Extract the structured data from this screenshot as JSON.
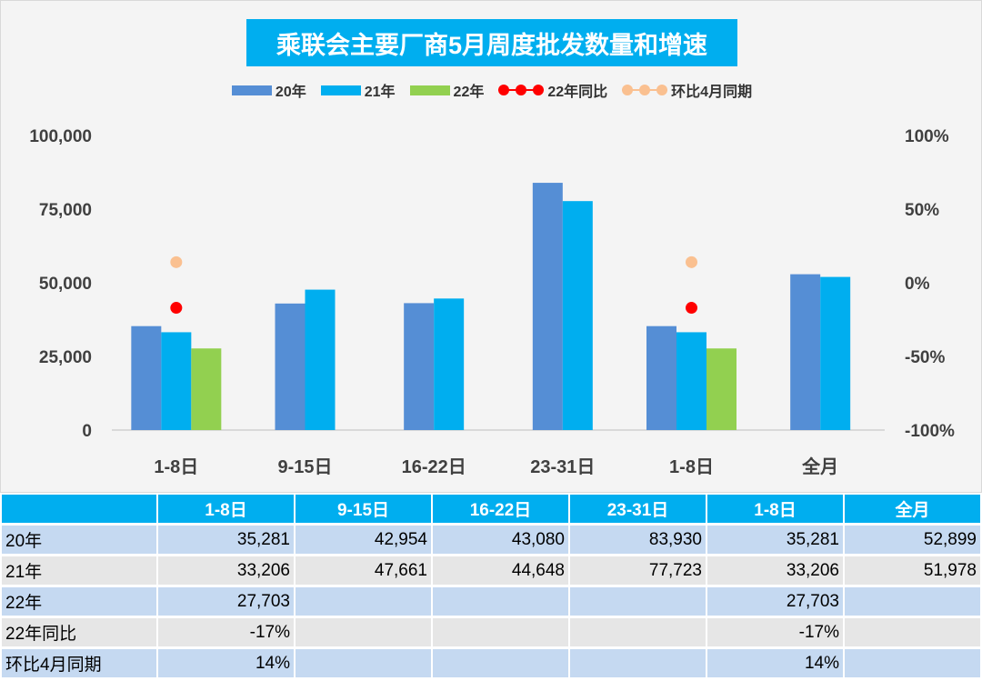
{
  "title": "乘联会主要厂商5月周度批发数量和增速",
  "legend": [
    {
      "name": "20年",
      "color": "#558ed5",
      "kind": "bar"
    },
    {
      "name": "21年",
      "color": "#00aeef",
      "kind": "bar"
    },
    {
      "name": "22年",
      "color": "#92d050",
      "kind": "bar"
    },
    {
      "name": "22年同比",
      "color": "#ff0000",
      "kind": "dot"
    },
    {
      "name": "环比4月同期",
      "color": "#fac090",
      "kind": "dot"
    }
  ],
  "chart_data": {
    "type": "bar",
    "title": "乘联会主要厂商5月周度批发数量和增速",
    "categories": [
      "1-8日",
      "9-15日",
      "16-22日",
      "23-31日",
      "1-8日",
      "全月"
    ],
    "series": [
      {
        "name": "20年",
        "type": "bar",
        "axis": "left",
        "color": "#558ed5",
        "values": [
          35281,
          42954,
          43080,
          83930,
          35281,
          52899
        ]
      },
      {
        "name": "21年",
        "type": "bar",
        "axis": "left",
        "color": "#00aeef",
        "values": [
          33206,
          47661,
          44648,
          77723,
          33206,
          51978
        ]
      },
      {
        "name": "22年",
        "type": "bar",
        "axis": "left",
        "color": "#92d050",
        "values": [
          27703,
          null,
          null,
          null,
          27703,
          null
        ]
      },
      {
        "name": "22年同比",
        "type": "scatter",
        "axis": "right",
        "color": "#ff0000",
        "values": [
          -17,
          null,
          null,
          null,
          -17,
          null
        ]
      },
      {
        "name": "环比4月同期",
        "type": "scatter",
        "axis": "right",
        "color": "#fac090",
        "values": [
          14,
          null,
          null,
          null,
          14,
          null
        ]
      }
    ],
    "y_left": {
      "range": [
        0,
        100000
      ],
      "ticks": [
        0,
        25000,
        50000,
        75000,
        100000
      ],
      "tick_labels": [
        "0",
        "25,000",
        "50,000",
        "75,000",
        "100,000"
      ]
    },
    "y_right": {
      "range": [
        -100,
        100
      ],
      "ticks": [
        -100,
        -50,
        0,
        50,
        100
      ],
      "tick_labels": [
        "-100%",
        "-50%",
        "0%",
        "50%",
        "100%"
      ]
    },
    "grid": false,
    "legend_position": "top"
  },
  "table": {
    "header": [
      "",
      "1-8日",
      "9-15日",
      "16-22日",
      "23-31日",
      "1-8日",
      "全月"
    ],
    "rows": [
      {
        "label": "20年",
        "cells": [
          "35,281",
          "42,954",
          "43,080",
          "83,930",
          "35,281",
          "52,899"
        ]
      },
      {
        "label": "21年",
        "cells": [
          "33,206",
          "47,661",
          "44,648",
          "77,723",
          "33,206",
          "51,978"
        ]
      },
      {
        "label": "22年",
        "cells": [
          "27,703",
          "",
          "",
          "",
          "27,703",
          ""
        ]
      },
      {
        "label": "22年同比",
        "cells": [
          "-17%",
          "",
          "",
          "",
          "-17%",
          ""
        ]
      },
      {
        "label": "环比4月同期",
        "cells": [
          "14%",
          "",
          "",
          "",
          "14%",
          ""
        ]
      }
    ]
  }
}
